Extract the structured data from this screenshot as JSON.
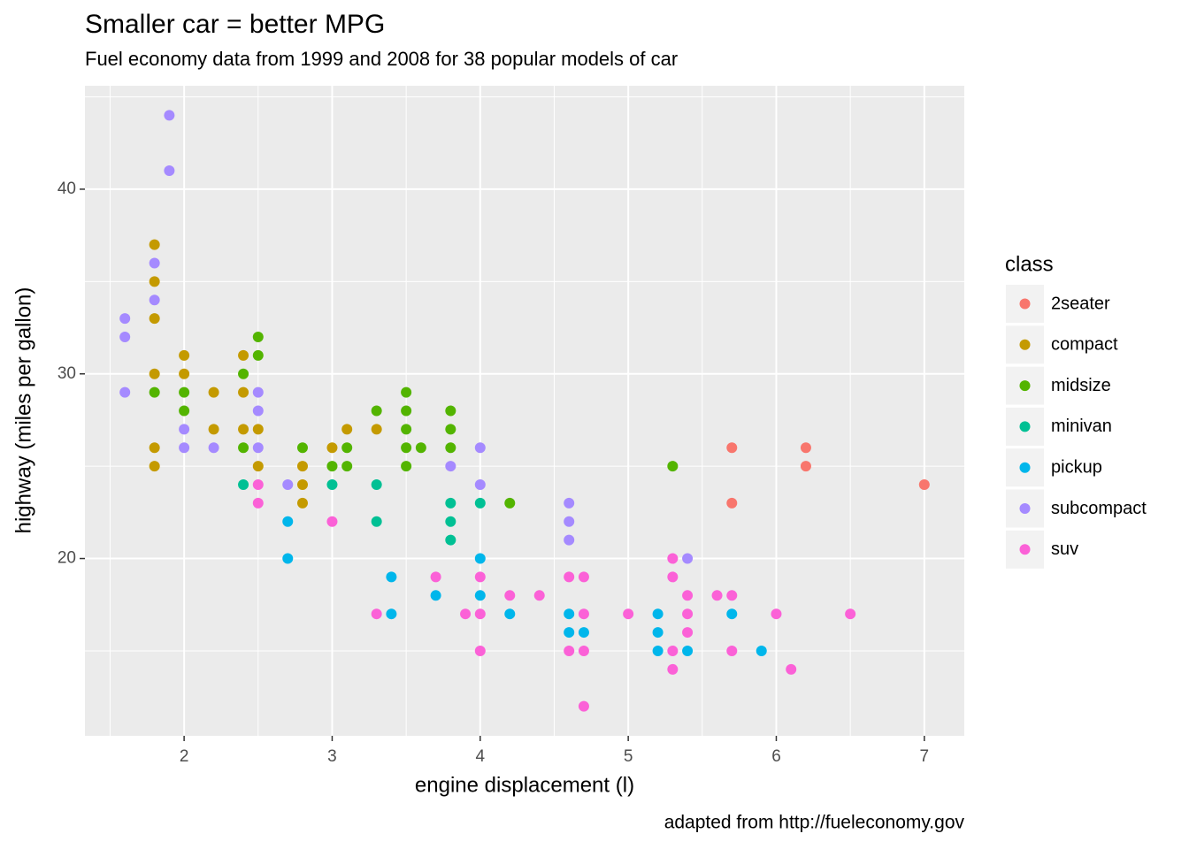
{
  "chart_data": {
    "type": "scatter",
    "title": "Smaller car = better MPG",
    "subtitle": "Fuel economy data from 1999 and 2008 for 38 popular models of car",
    "x_label": "engine displacement (l)",
    "y_label": "highway (miles per gallon)",
    "caption": "adapted from http://fueleconomy.gov",
    "legend_title": "class",
    "legend_position": "right",
    "grid": true,
    "xlim": [
      1.33,
      7.27
    ],
    "ylim": [
      10.4,
      45.6
    ],
    "xticks": [
      2,
      3,
      4,
      5,
      6,
      7
    ],
    "yticks": [
      20,
      30,
      40
    ],
    "xminor": [
      1.5,
      2.5,
      3.5,
      4.5,
      5.5,
      6.5
    ],
    "yminor": [
      15,
      25,
      35,
      45
    ],
    "series": [
      {
        "name": "2seater",
        "color": "#F8766D",
        "x": [
          5.7,
          5.7,
          6.2,
          6.2,
          7.0
        ],
        "y": [
          26,
          23,
          26,
          25,
          24
        ]
      },
      {
        "name": "compact",
        "color": "#C49A00",
        "x": [
          1.8,
          1.8,
          1.8,
          1.8,
          1.8,
          1.8,
          2.0,
          2.0,
          2.2,
          2.2,
          2.4,
          2.4,
          2.4,
          2.5,
          2.5,
          2.8,
          2.8,
          2.8,
          3.0,
          3.1,
          3.3
        ],
        "y": [
          37,
          35,
          33,
          30,
          26,
          25,
          31,
          30,
          29,
          27,
          31,
          29,
          27,
          27,
          25,
          25,
          24,
          23,
          26,
          27,
          27
        ]
      },
      {
        "name": "midsize",
        "color": "#53B400",
        "x": [
          1.8,
          2.0,
          2.0,
          2.4,
          2.4,
          2.5,
          2.5,
          2.8,
          3.0,
          3.1,
          3.1,
          3.3,
          3.5,
          3.5,
          3.5,
          3.5,
          3.5,
          3.6,
          3.8,
          3.8,
          3.8,
          4.2,
          5.3
        ],
        "y": [
          29,
          29,
          28,
          30,
          26,
          32,
          31,
          26,
          25,
          26,
          25,
          28,
          29,
          28,
          27,
          26,
          25,
          26,
          28,
          27,
          26,
          23,
          25
        ]
      },
      {
        "name": "minivan",
        "color": "#00C094",
        "x": [
          2.4,
          3.0,
          3.3,
          3.3,
          3.8,
          3.8,
          3.8,
          4.0
        ],
        "y": [
          24,
          24,
          24,
          22,
          23,
          22,
          21,
          23
        ]
      },
      {
        "name": "pickup",
        "color": "#00B6EB",
        "x": [
          2.7,
          2.7,
          3.4,
          3.4,
          3.7,
          4.0,
          4.0,
          4.2,
          4.6,
          4.6,
          4.7,
          5.2,
          5.2,
          5.2,
          5.4,
          5.7,
          5.9
        ],
        "y": [
          22,
          20,
          19,
          17,
          18,
          20,
          18,
          17,
          17,
          16,
          16,
          17,
          16,
          15,
          15,
          17,
          15
        ]
      },
      {
        "name": "subcompact",
        "color": "#A58AFF",
        "x": [
          1.6,
          1.6,
          1.6,
          1.8,
          1.8,
          1.9,
          1.9,
          2.0,
          2.0,
          2.2,
          2.5,
          2.5,
          2.5,
          2.7,
          3.8,
          4.0,
          4.0,
          4.6,
          4.6,
          4.6,
          5.4
        ],
        "y": [
          33,
          32,
          29,
          36,
          34,
          44,
          41,
          27,
          26,
          26,
          29,
          28,
          26,
          24,
          25,
          26,
          24,
          23,
          22,
          21,
          20
        ]
      },
      {
        "name": "suv",
        "color": "#FB61D7",
        "x": [
          2.5,
          2.5,
          3.0,
          3.3,
          3.7,
          3.9,
          4.0,
          4.0,
          4.0,
          4.2,
          4.4,
          4.6,
          4.6,
          4.7,
          4.7,
          4.7,
          4.7,
          5.0,
          5.3,
          5.3,
          5.3,
          5.3,
          5.4,
          5.4,
          5.4,
          5.6,
          5.7,
          5.7,
          6.0,
          6.1,
          6.5
        ],
        "y": [
          24,
          23,
          22,
          17,
          19,
          17,
          19,
          17,
          15,
          18,
          18,
          19,
          15,
          19,
          17,
          15,
          12,
          17,
          20,
          19,
          15,
          14,
          18,
          17,
          16,
          18,
          18,
          15,
          17,
          14,
          17
        ]
      }
    ]
  }
}
